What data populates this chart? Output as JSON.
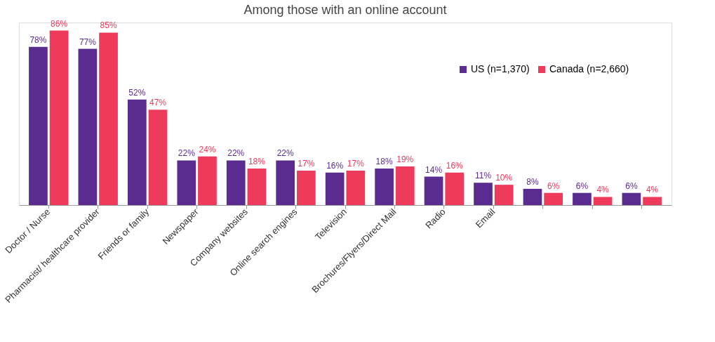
{
  "chart_data": {
    "type": "bar",
    "title": "Among those with an online account",
    "categories": [
      "Doctor / Nurse",
      "Pharmacist/ healthcare provider",
      "Friends or family",
      "Newspaper",
      "Company websites",
      "Online search engines",
      "Television",
      "Brochures/Flyers/Direct Mail",
      "Radio",
      "Email",
      null,
      null,
      null
    ],
    "series": [
      {
        "name": "US (n=1,370)",
        "color": "#5b2c8f",
        "values": [
          78,
          77,
          52,
          22,
          22,
          22,
          16,
          18,
          14,
          11,
          8,
          6,
          6
        ],
        "value_labels": [
          "78%",
          "77%",
          "52%",
          "22%",
          "22%",
          "22%",
          "16%",
          "18%",
          "14%",
          "11%",
          "8%",
          "6%",
          "6%"
        ]
      },
      {
        "name": "Canada (n=2,660)",
        "color": "#ee3a5b",
        "values": [
          86,
          85,
          47,
          24,
          18,
          17,
          17,
          19,
          16,
          10,
          6,
          4,
          4
        ],
        "value_labels": [
          "86%",
          "85%",
          "47%",
          "24%",
          "18%",
          "17%",
          "17%",
          "19%",
          "16%",
          "10%",
          "6%",
          "4%",
          "4%"
        ]
      }
    ],
    "legend": "top right",
    "grid": false
  }
}
